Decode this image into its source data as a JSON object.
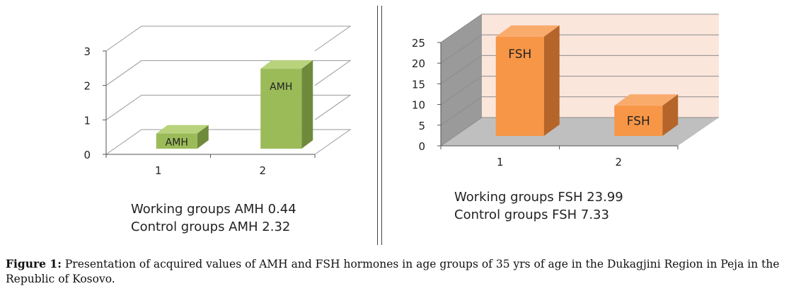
{
  "chart_data": [
    {
      "type": "bar",
      "categories": [
        "1",
        "2"
      ],
      "values": [
        0.44,
        2.32
      ],
      "bar_labels": [
        "AMH",
        "AMH"
      ],
      "yticks": [
        "0",
        "1",
        "2",
        "3"
      ],
      "ylim": [
        0,
        3
      ],
      "colors": {
        "front": "#9bbb59",
        "side": "#6f8a3a",
        "top": "#b9d27c"
      },
      "stats": [
        "Working groups  AMH 0.44",
        "Control groups AMH 2.32"
      ]
    },
    {
      "type": "bar",
      "categories": [
        "1",
        "2"
      ],
      "values": [
        23.99,
        7.33
      ],
      "bar_labels": [
        "FSH",
        "FSH"
      ],
      "yticks": [
        "0",
        "5",
        "10",
        "15",
        "20",
        "25"
      ],
      "ylim": [
        0,
        25
      ],
      "colors": {
        "front": "#f79646",
        "side": "#b5652a",
        "top": "#f9ab6c",
        "wall": "#fbe6dc",
        "floor": "#bfbfbf",
        "side_wall": "#9a9a9a"
      },
      "stats": [
        "Working groups FSH 23.99",
        "Control groups FSH 7.33"
      ]
    }
  ],
  "caption": {
    "label": "Figure 1:",
    "text": " Presentation of acquired values of AMH and FSH hormones in age groups of 35 yrs of age in the Dukagjini Region in Peja in the Republic of Kosovo."
  }
}
